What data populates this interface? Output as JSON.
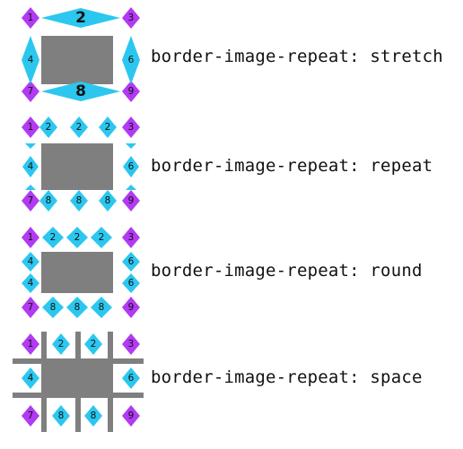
{
  "colors": {
    "corner": "#b23af2",
    "edge": "#2cc7ef",
    "center": "#7f7f7f",
    "gap_bar": "#7f7f7f"
  },
  "demos": [
    {
      "caption": "border-image-repeat: stretch",
      "labels": {
        "c1": "1",
        "c3": "3",
        "c7": "7",
        "c9": "9",
        "top": "2",
        "bottom": "8",
        "left": "4",
        "right": "6"
      }
    },
    {
      "caption": "border-image-repeat: repeat",
      "labels": {
        "c1": "1",
        "c3": "3",
        "c7": "7",
        "c9": "9",
        "top": "2",
        "bottom": "8",
        "left": "4",
        "right": "6"
      }
    },
    {
      "caption": "border-image-repeat: round",
      "labels": {
        "c1": "1",
        "c3": "3",
        "c7": "7",
        "c9": "9",
        "top": "2",
        "bottom": "8",
        "left": "4",
        "right": "6"
      }
    },
    {
      "caption": "border-image-repeat: space",
      "labels": {
        "c1": "1",
        "c3": "3",
        "c7": "7",
        "c9": "9",
        "top": "2",
        "bottom": "8",
        "left": "4",
        "right": "6"
      }
    }
  ]
}
